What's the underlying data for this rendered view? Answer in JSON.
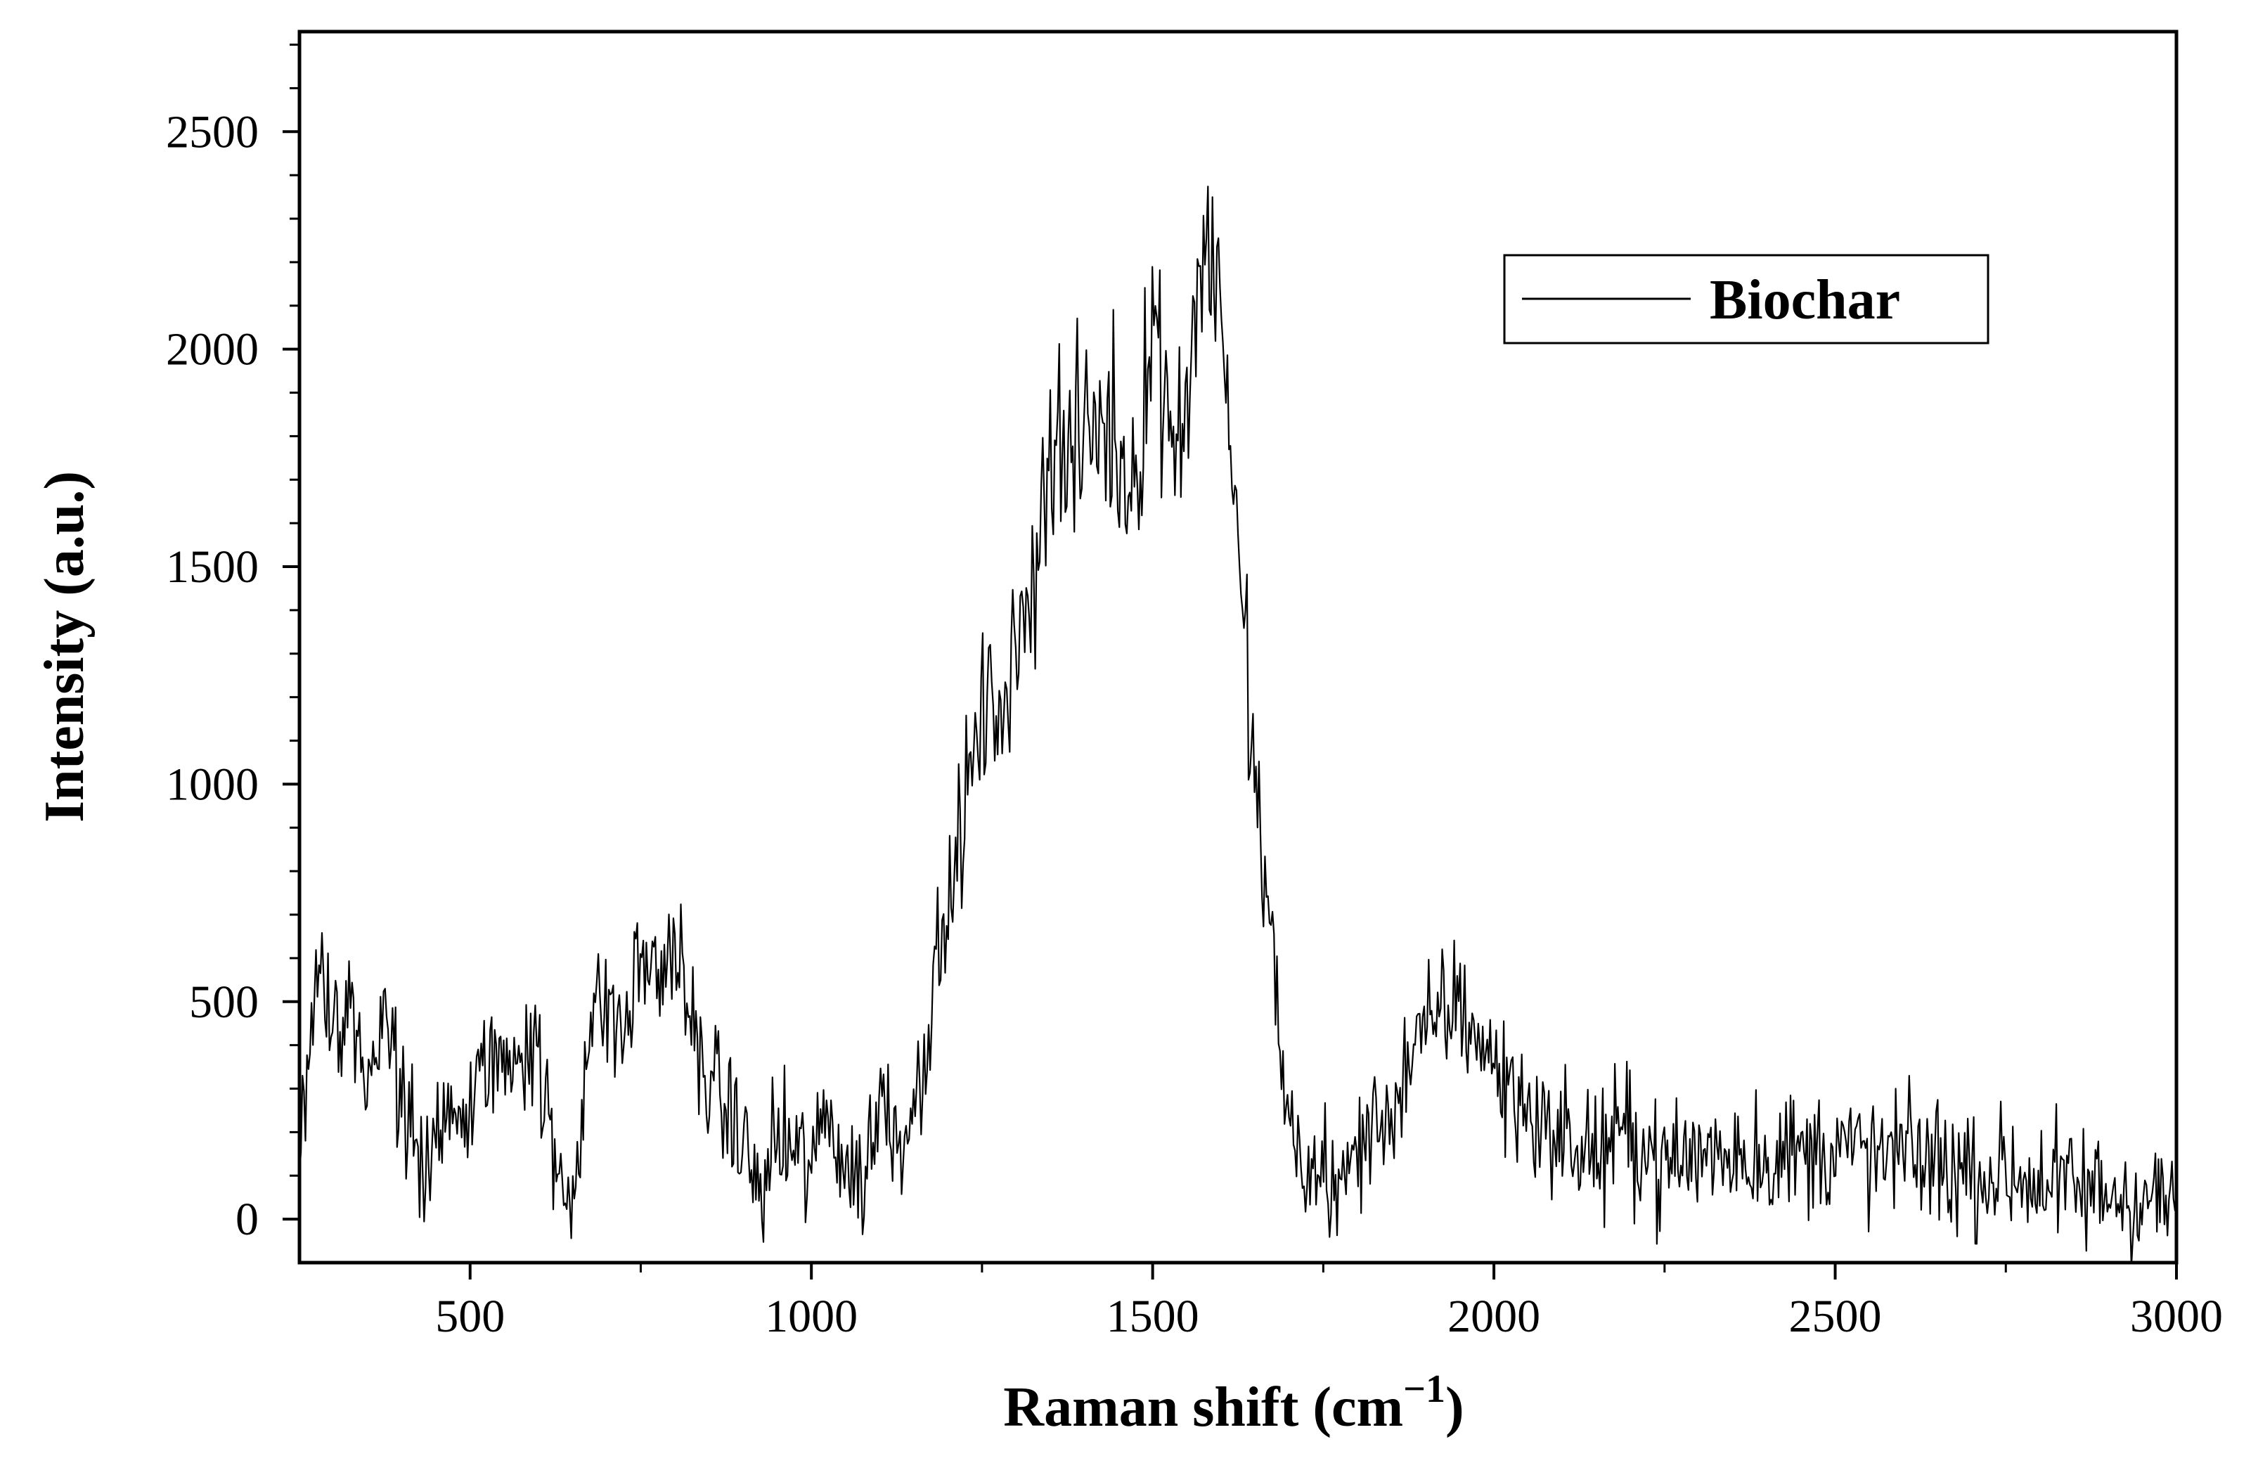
{
  "chart_data": {
    "type": "line",
    "xlabel": "Raman shift (cm",
    "xlabel_sup": "−1",
    "xlabel_close": ")",
    "ylabel": "Intensity (a.u.)",
    "xlim": [
      250,
      3000
    ],
    "ylim": [
      -100,
      2730
    ],
    "x_ticks": [
      500,
      1000,
      1500,
      2000,
      2500,
      3000
    ],
    "y_ticks": [
      0,
      500,
      1000,
      1500,
      2000,
      2500
    ],
    "x_tick_labels": [
      "500",
      "1000",
      "1500",
      "2000",
      "2500",
      "3000"
    ],
    "y_tick_labels": [
      "0",
      "500",
      "1000",
      "1500",
      "2000",
      "2500"
    ],
    "grid": false,
    "legend": {
      "position": "top-right",
      "entries": [
        "Biochar"
      ]
    },
    "series": [
      {
        "name": "Biochar",
        "color": "#000000",
        "x": [
          250,
          275,
          300,
          325,
          350,
          375,
          400,
          425,
          450,
          475,
          500,
          525,
          550,
          575,
          600,
          625,
          650,
          675,
          700,
          725,
          750,
          775,
          800,
          825,
          850,
          875,
          900,
          925,
          950,
          975,
          1000,
          1025,
          1050,
          1075,
          1100,
          1125,
          1150,
          1175,
          1200,
          1225,
          1250,
          1275,
          1300,
          1325,
          1350,
          1375,
          1400,
          1425,
          1450,
          1475,
          1500,
          1525,
          1550,
          1575,
          1600,
          1625,
          1650,
          1675,
          1700,
          1725,
          1750,
          1775,
          1800,
          1825,
          1850,
          1875,
          1900,
          1925,
          1950,
          1975,
          2000,
          2050,
          2100,
          2150,
          2200,
          2250,
          2300,
          2350,
          2400,
          2450,
          2500,
          2550,
          2600,
          2650,
          2700,
          2750,
          2800,
          2850,
          2900,
          2950,
          3000
        ],
        "values": [
          150,
          600,
          450,
          500,
          300,
          450,
          280,
          120,
          150,
          280,
          220,
          380,
          350,
          420,
          380,
          100,
          50,
          450,
          500,
          420,
          600,
          560,
          640,
          420,
          320,
          250,
          180,
          50,
          180,
          150,
          120,
          250,
          120,
          80,
          280,
          200,
          250,
          500,
          700,
          950,
          1150,
          1200,
          1250,
          1500,
          1800,
          1750,
          1780,
          1850,
          1750,
          1700,
          2100,
          1800,
          1900,
          2250,
          2150,
          1500,
          1000,
          600,
          200,
          100,
          120,
          50,
          180,
          200,
          260,
          350,
          420,
          480,
          500,
          420,
          350,
          250,
          180,
          150,
          200,
          120,
          150,
          160,
          140,
          150,
          170,
          140,
          150,
          130,
          110,
          100,
          90,
          70,
          60,
          50,
          40
        ]
      }
    ]
  }
}
